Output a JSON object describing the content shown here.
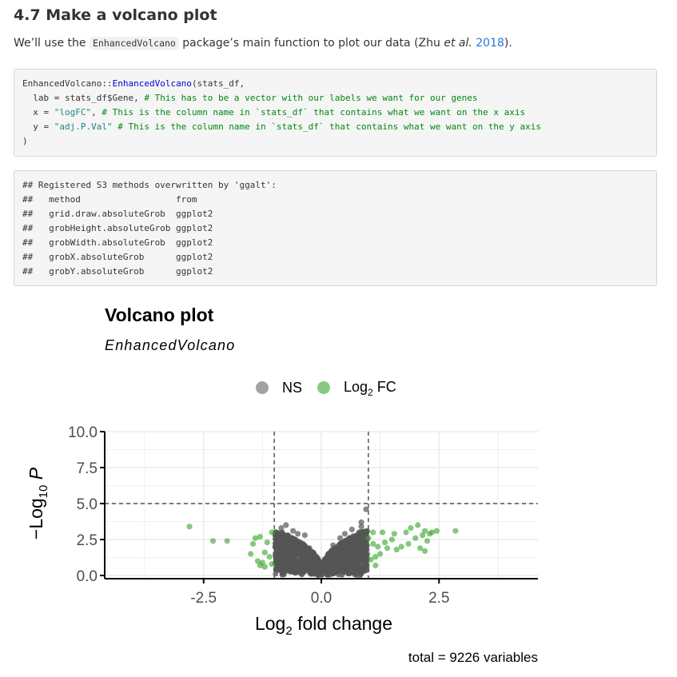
{
  "heading": "4.7 Make a volcano plot",
  "intro": {
    "before": "We’ll use the ",
    "code": "EnhancedVolcano",
    "middle": " package’s main function to plot our data (Zhu ",
    "etal": "et al.",
    "space": " ",
    "year": "2018",
    "after": ")."
  },
  "source_code": {
    "l1_a": "EnhancedVolcano::",
    "l1_fn": "EnhancedVolcano",
    "l1_b": "(stats_df,",
    "l2_a": "  lab = stats_df$Gene, ",
    "l2_c": "# This has to be a vector with our labels we want for our genes",
    "l3_a": "  x = ",
    "l3_s": "\"logFC\"",
    "l3_b": ", ",
    "l3_c": "# This is the column name in `stats_df` that contains what we want on the x axis",
    "l4_a": "  y = ",
    "l4_s": "\"adj.P.Val\"",
    "l4_b": " ",
    "l4_c": "# This is the column name in `stats_df` that contains what we want on the y axis",
    "l5": ")"
  },
  "output_lines": [
    "## Registered S3 methods overwritten by 'ggalt':",
    "##   method                  from   ",
    "##   grid.draw.absoluteGrob  ggplot2",
    "##   grobHeight.absoluteGrob ggplot2",
    "##   grobWidth.absoluteGrob  ggplot2",
    "##   grobX.absoluteGrob      ggplot2",
    "##   grobY.absoluteGrob      ggplot2"
  ],
  "chart_data": {
    "type": "scatter",
    "title": "Volcano plot",
    "subtitle": "EnhancedVolcano",
    "xlabel": "Log2 fold change",
    "ylabel": "−Log10 P",
    "caption": "total = 9226 variables",
    "xlim": [
      -4.6,
      4.6
    ],
    "ylim": [
      0,
      10
    ],
    "xticks": [
      "-2.5",
      "0.0",
      "2.5"
    ],
    "xtick_values": [
      -2.5,
      0.0,
      2.5
    ],
    "yticks": [
      "0.0",
      "2.5",
      "5.0",
      "7.5",
      "10.0"
    ],
    "ytick_values": [
      0.0,
      2.5,
      5.0,
      7.5,
      10.0
    ],
    "fc_cutoff": 1.0,
    "p_cutoff_neglog10": 5.0,
    "grid": true,
    "legend_position": "top",
    "colors": {
      "ns": "#555555",
      "fc": "#3aa62e",
      "grid": "#ebebeb"
    },
    "series": [
      {
        "name": "NS",
        "legend_label": "NS",
        "color": "#555555",
        "points": [
          [
            -0.9,
            1.8
          ],
          [
            -0.85,
            3.3
          ],
          [
            -0.75,
            3.5
          ],
          [
            -0.7,
            1.2
          ],
          [
            -0.6,
            3.1
          ],
          [
            -0.55,
            2.5
          ],
          [
            -0.5,
            2.9
          ],
          [
            -0.45,
            1.8
          ],
          [
            -0.35,
            2.8
          ],
          [
            -0.3,
            1.0
          ],
          [
            -0.25,
            1.9
          ],
          [
            -0.2,
            0.8
          ],
          [
            -0.15,
            1.3
          ],
          [
            -0.1,
            0.4
          ],
          [
            0.05,
            0.3
          ],
          [
            0.1,
            0.6
          ],
          [
            0.15,
            1.4
          ],
          [
            0.25,
            2.1
          ],
          [
            0.3,
            1.1
          ],
          [
            0.4,
            2.6
          ],
          [
            0.45,
            1.7
          ],
          [
            0.5,
            2.9
          ],
          [
            0.6,
            2.2
          ],
          [
            0.65,
            3.2
          ],
          [
            0.7,
            1.5
          ],
          [
            0.8,
            3.0
          ],
          [
            0.85,
            3.7
          ],
          [
            0.9,
            2.4
          ],
          [
            0.95,
            4.6
          ],
          [
            0.85,
            3.4
          ],
          [
            -0.95,
            0.9
          ],
          [
            -0.8,
            2.2
          ]
        ]
      },
      {
        "name": "Log2 FC",
        "legend_label": "Log",
        "legend_sub": "2",
        "legend_after": " FC",
        "color": "#3aa62e",
        "points": [
          [
            -2.8,
            3.4
          ],
          [
            -2.3,
            2.4
          ],
          [
            -2.0,
            2.4
          ],
          [
            -1.5,
            1.5
          ],
          [
            -1.45,
            2.2
          ],
          [
            -1.4,
            2.6
          ],
          [
            -1.35,
            1.0
          ],
          [
            -1.3,
            2.7
          ],
          [
            -1.25,
            0.9
          ],
          [
            -1.2,
            1.6
          ],
          [
            -1.15,
            2.3
          ],
          [
            -1.1,
            1.3
          ],
          [
            -1.05,
            3.0
          ],
          [
            -1.05,
            0.8
          ],
          [
            -1.2,
            0.6
          ],
          [
            -1.3,
            0.7
          ],
          [
            1.0,
            2.6
          ],
          [
            1.05,
            1.1
          ],
          [
            1.1,
            3.0
          ],
          [
            1.15,
            0.7
          ],
          [
            1.2,
            2.0
          ],
          [
            1.25,
            1.5
          ],
          [
            1.3,
            3.0
          ],
          [
            1.35,
            2.3
          ],
          [
            1.4,
            1.9
          ],
          [
            1.5,
            2.5
          ],
          [
            1.55,
            2.9
          ],
          [
            1.6,
            1.8
          ],
          [
            1.7,
            2.0
          ],
          [
            1.8,
            3.0
          ],
          [
            1.85,
            2.2
          ],
          [
            1.9,
            3.3
          ],
          [
            2.0,
            2.6
          ],
          [
            2.05,
            3.5
          ],
          [
            2.1,
            1.9
          ],
          [
            2.15,
            2.8
          ],
          [
            2.2,
            3.1
          ],
          [
            2.25,
            2.4
          ],
          [
            2.3,
            2.9
          ],
          [
            2.35,
            3.0
          ],
          [
            2.45,
            3.1
          ],
          [
            2.85,
            3.1
          ],
          [
            2.2,
            1.7
          ],
          [
            1.15,
            1.3
          ],
          [
            1.1,
            2.2
          ]
        ]
      }
    ]
  }
}
